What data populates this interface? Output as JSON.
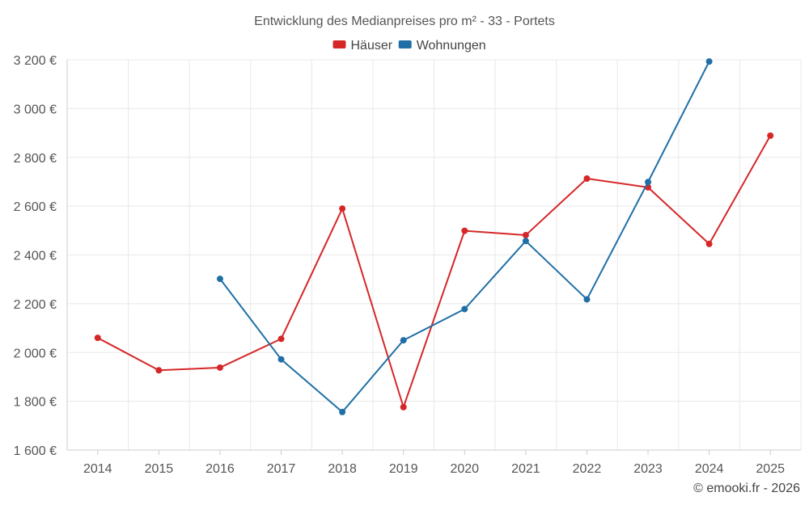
{
  "chart_data": {
    "type": "line",
    "title": "Entwicklung des Medianpreises pro m² - 33 - Portets",
    "categories": [
      "2014",
      "2015",
      "2016",
      "2017",
      "2018",
      "2019",
      "2020",
      "2021",
      "2022",
      "2023",
      "2024",
      "2025"
    ],
    "ylim": [
      1600,
      3200
    ],
    "yticks": [
      1600,
      1800,
      2000,
      2200,
      2400,
      2600,
      2800,
      3000,
      3200
    ],
    "ytick_labels": [
      "1 600 €",
      "1 800 €",
      "2 000 €",
      "2 200 €",
      "2 400 €",
      "2 600 €",
      "2 800 €",
      "3 000 €",
      "3 200 €"
    ],
    "grid": true,
    "legend_position": "top-center",
    "series": [
      {
        "name": "Häuser",
        "color": "#d62728",
        "values": [
          2060,
          1927,
          1938,
          2056,
          2590,
          1776,
          2499,
          2481,
          2713,
          2677,
          2445,
          2889
        ]
      },
      {
        "name": "Wohnungen",
        "color": "#1f6fa6",
        "values": [
          null,
          null,
          2302,
          1972,
          1756,
          2050,
          2178,
          2457,
          2218,
          2699,
          3193,
          null
        ]
      }
    ],
    "credit": "© emooki.fr - 2026"
  }
}
